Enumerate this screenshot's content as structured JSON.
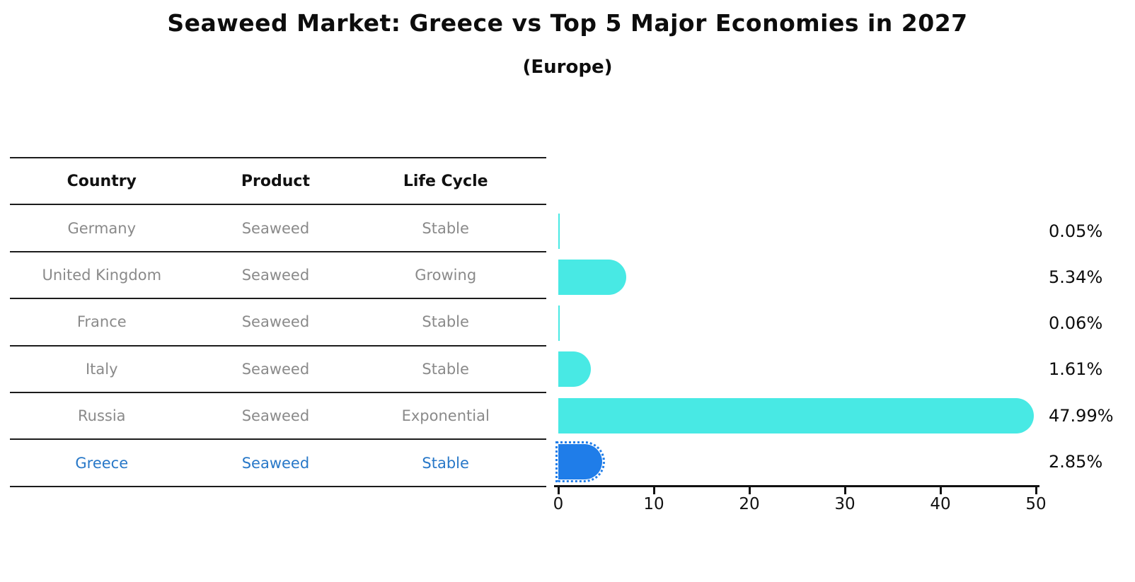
{
  "header": {
    "title": "Seaweed Market: Greece vs Top 5 Major Economies in 2027",
    "subtitle": "(Europe)"
  },
  "table": {
    "columns": [
      "Country",
      "Product",
      "Life Cycle"
    ],
    "rows": [
      {
        "country": "Germany",
        "product": "Seaweed",
        "life_cycle": "Stable",
        "highlight": false
      },
      {
        "country": "United Kingdom",
        "product": "Seaweed",
        "life_cycle": "Growing",
        "highlight": false
      },
      {
        "country": "France",
        "product": "Seaweed",
        "life_cycle": "Stable",
        "highlight": false
      },
      {
        "country": "Italy",
        "product": "Seaweed",
        "life_cycle": "Stable",
        "highlight": false
      },
      {
        "country": "Russia",
        "product": "Seaweed",
        "life_cycle": "Exponential",
        "highlight": false
      },
      {
        "country": "Greece",
        "product": "Seaweed",
        "life_cycle": "Stable",
        "highlight": true
      }
    ]
  },
  "chart_data": {
    "type": "bar",
    "orientation": "horizontal",
    "title": "Seaweed Market: Greece vs Top 5 Major Economies in 2027",
    "subtitle": "(Europe)",
    "categories": [
      "Germany",
      "United Kingdom",
      "France",
      "Italy",
      "Russia",
      "Greece"
    ],
    "values": [
      0.05,
      5.34,
      0.06,
      1.61,
      47.99,
      2.85
    ],
    "value_labels": [
      "0.05%",
      "5.34%",
      "0.06%",
      "1.61%",
      "47.99%",
      "2.85%"
    ],
    "xlabel": "",
    "ylabel": "",
    "xlim": [
      0,
      50
    ],
    "x_ticks": [
      0,
      10,
      20,
      30,
      40,
      50
    ],
    "grid": false,
    "highlight_index": 5,
    "colors": {
      "bar": "#48E9E4",
      "highlight_bar": "#1F7DE9",
      "highlight_text": "#2878C8",
      "row_text": "#8a8a8a",
      "header_text": "#111111",
      "rule": "#1c1c1c",
      "axis": "#111111",
      "value_label": "#0d0d0d"
    }
  }
}
